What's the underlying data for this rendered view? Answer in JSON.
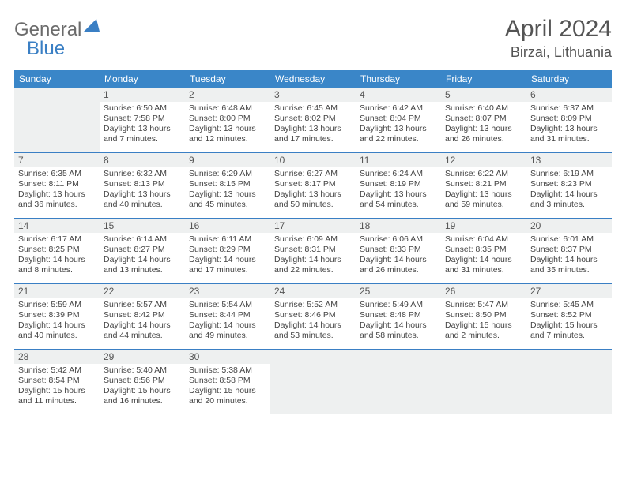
{
  "brand": {
    "part1": "General",
    "part2": "Blue"
  },
  "title": "April 2024",
  "location": "Birzai, Lithuania",
  "dayNames": [
    "Sunday",
    "Monday",
    "Tuesday",
    "Wednesday",
    "Thursday",
    "Friday",
    "Saturday"
  ],
  "colors": {
    "header_bg": "#3a86c8",
    "accent": "#3a7fc4",
    "shaded": "#eef0f0",
    "text": "#444444"
  },
  "startDayIndex": 1,
  "daysInMonth": 30,
  "days": {
    "1": {
      "sunrise": "6:50 AM",
      "sunset": "7:58 PM",
      "daylight": "13 hours and 7 minutes."
    },
    "2": {
      "sunrise": "6:48 AM",
      "sunset": "8:00 PM",
      "daylight": "13 hours and 12 minutes."
    },
    "3": {
      "sunrise": "6:45 AM",
      "sunset": "8:02 PM",
      "daylight": "13 hours and 17 minutes."
    },
    "4": {
      "sunrise": "6:42 AM",
      "sunset": "8:04 PM",
      "daylight": "13 hours and 22 minutes."
    },
    "5": {
      "sunrise": "6:40 AM",
      "sunset": "8:07 PM",
      "daylight": "13 hours and 26 minutes."
    },
    "6": {
      "sunrise": "6:37 AM",
      "sunset": "8:09 PM",
      "daylight": "13 hours and 31 minutes."
    },
    "7": {
      "sunrise": "6:35 AM",
      "sunset": "8:11 PM",
      "daylight": "13 hours and 36 minutes."
    },
    "8": {
      "sunrise": "6:32 AM",
      "sunset": "8:13 PM",
      "daylight": "13 hours and 40 minutes."
    },
    "9": {
      "sunrise": "6:29 AM",
      "sunset": "8:15 PM",
      "daylight": "13 hours and 45 minutes."
    },
    "10": {
      "sunrise": "6:27 AM",
      "sunset": "8:17 PM",
      "daylight": "13 hours and 50 minutes."
    },
    "11": {
      "sunrise": "6:24 AM",
      "sunset": "8:19 PM",
      "daylight": "13 hours and 54 minutes."
    },
    "12": {
      "sunrise": "6:22 AM",
      "sunset": "8:21 PM",
      "daylight": "13 hours and 59 minutes."
    },
    "13": {
      "sunrise": "6:19 AM",
      "sunset": "8:23 PM",
      "daylight": "14 hours and 3 minutes."
    },
    "14": {
      "sunrise": "6:17 AM",
      "sunset": "8:25 PM",
      "daylight": "14 hours and 8 minutes."
    },
    "15": {
      "sunrise": "6:14 AM",
      "sunset": "8:27 PM",
      "daylight": "14 hours and 13 minutes."
    },
    "16": {
      "sunrise": "6:11 AM",
      "sunset": "8:29 PM",
      "daylight": "14 hours and 17 minutes."
    },
    "17": {
      "sunrise": "6:09 AM",
      "sunset": "8:31 PM",
      "daylight": "14 hours and 22 minutes."
    },
    "18": {
      "sunrise": "6:06 AM",
      "sunset": "8:33 PM",
      "daylight": "14 hours and 26 minutes."
    },
    "19": {
      "sunrise": "6:04 AM",
      "sunset": "8:35 PM",
      "daylight": "14 hours and 31 minutes."
    },
    "20": {
      "sunrise": "6:01 AM",
      "sunset": "8:37 PM",
      "daylight": "14 hours and 35 minutes."
    },
    "21": {
      "sunrise": "5:59 AM",
      "sunset": "8:39 PM",
      "daylight": "14 hours and 40 minutes."
    },
    "22": {
      "sunrise": "5:57 AM",
      "sunset": "8:42 PM",
      "daylight": "14 hours and 44 minutes."
    },
    "23": {
      "sunrise": "5:54 AM",
      "sunset": "8:44 PM",
      "daylight": "14 hours and 49 minutes."
    },
    "24": {
      "sunrise": "5:52 AM",
      "sunset": "8:46 PM",
      "daylight": "14 hours and 53 minutes."
    },
    "25": {
      "sunrise": "5:49 AM",
      "sunset": "8:48 PM",
      "daylight": "14 hours and 58 minutes."
    },
    "26": {
      "sunrise": "5:47 AM",
      "sunset": "8:50 PM",
      "daylight": "15 hours and 2 minutes."
    },
    "27": {
      "sunrise": "5:45 AM",
      "sunset": "8:52 PM",
      "daylight": "15 hours and 7 minutes."
    },
    "28": {
      "sunrise": "5:42 AM",
      "sunset": "8:54 PM",
      "daylight": "15 hours and 11 minutes."
    },
    "29": {
      "sunrise": "5:40 AM",
      "sunset": "8:56 PM",
      "daylight": "15 hours and 16 minutes."
    },
    "30": {
      "sunrise": "5:38 AM",
      "sunset": "8:58 PM",
      "daylight": "15 hours and 20 minutes."
    }
  }
}
